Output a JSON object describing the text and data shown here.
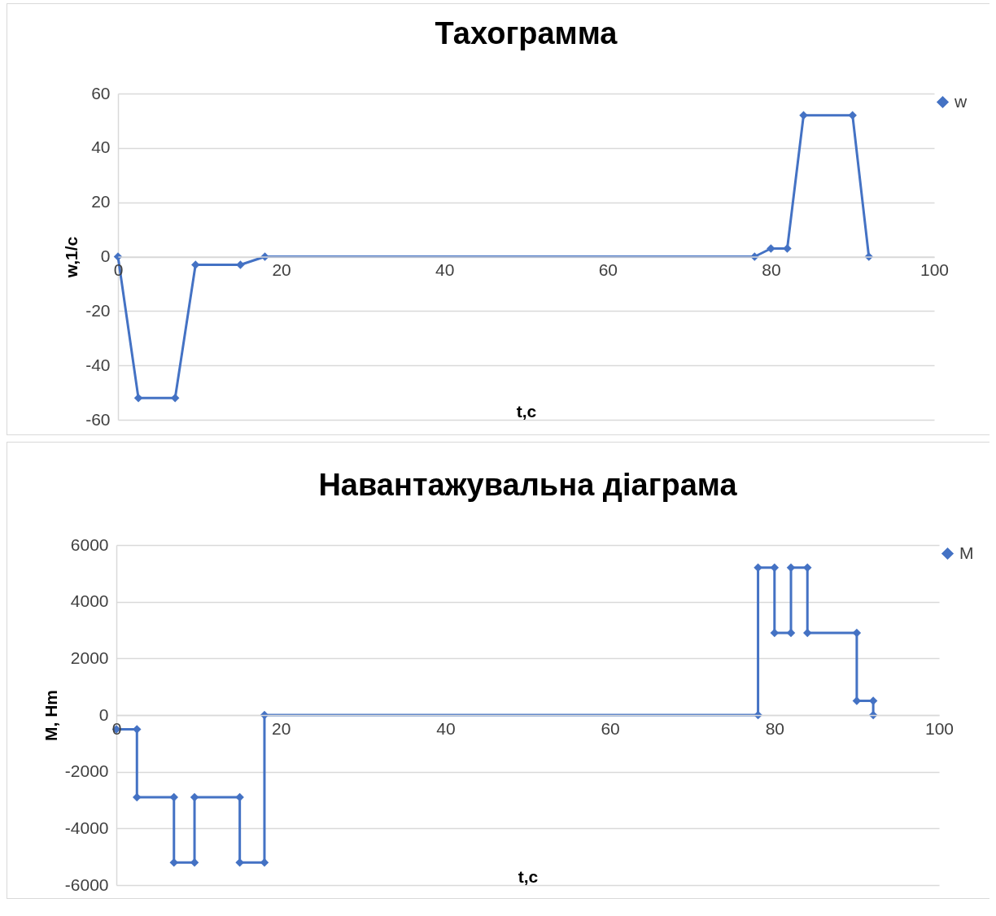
{
  "chart_data": [
    {
      "type": "line",
      "title": "Тахограмма",
      "xlabel": "t,c",
      "ylabel": "w,1/c",
      "xlim": [
        0,
        100
      ],
      "xticks": [
        0,
        20,
        40,
        60,
        80,
        100
      ],
      "ylim": [
        -60,
        60
      ],
      "yticks": [
        -60,
        -40,
        -20,
        0,
        20,
        40,
        60
      ],
      "grid": "y",
      "legend": "right",
      "marker": "diamond",
      "line_style": "solid",
      "series": [
        {
          "name": "w",
          "color": "#4472c4",
          "x": [
            0,
            2.5,
            7,
            9.5,
            15,
            18,
            78,
            80,
            82,
            84,
            90,
            92
          ],
          "values": [
            0,
            -52,
            -52,
            -3,
            -3,
            0,
            0,
            3,
            3,
            52,
            52,
            0
          ]
        }
      ]
    },
    {
      "type": "line",
      "title": "Навантажувальна діаграма",
      "xlabel": "t,c",
      "ylabel": "M, Нm",
      "xlim": [
        0,
        100
      ],
      "xticks": [
        0,
        20,
        40,
        60,
        80,
        100
      ],
      "ylim": [
        -6000,
        6000
      ],
      "yticks": [
        -6000,
        -4000,
        -2000,
        0,
        2000,
        4000,
        6000
      ],
      "grid": "y",
      "legend": "right",
      "marker": "diamond",
      "line_style": "solid",
      "series": [
        {
          "name": "M",
          "color": "#4472c4",
          "x": [
            0,
            2.5,
            2.5,
            7,
            7,
            9.5,
            9.5,
            15,
            15,
            18,
            18,
            78,
            78,
            80,
            80,
            82,
            82,
            84,
            84,
            90,
            90,
            92,
            92
          ],
          "values": [
            -500,
            -500,
            -2900,
            -2900,
            -5200,
            -5200,
            -2900,
            -2900,
            -5200,
            -5200,
            0,
            0,
            5200,
            5200,
            2900,
            2900,
            5200,
            5200,
            2900,
            2900,
            500,
            500,
            0
          ]
        }
      ]
    }
  ]
}
